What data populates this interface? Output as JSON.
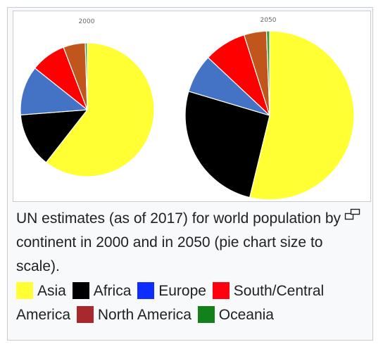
{
  "caption": "UN estimates (as of 2017) for world population by continent in 2000 and in 2050 (pie chart size to scale).",
  "enlarge_icon": "enlarge-icon",
  "legend": [
    {
      "label": "Asia",
      "color": "#ffff33"
    },
    {
      "label": "Africa",
      "color": "#000000"
    },
    {
      "label": "Europe",
      "color": "#0d2cff"
    },
    {
      "label": "South/Central",
      "color": "#ff0010"
    },
    {
      "label": "America",
      "color": null
    },
    {
      "label": "North America",
      "color": "#a8282e"
    },
    {
      "label": "Oceania",
      "color": "#14801a"
    }
  ],
  "chart_data": [
    {
      "type": "pie",
      "title": "2000",
      "labels": [
        "Asia",
        "Africa",
        "Europe",
        "South/Central America",
        "North America",
        "Oceania"
      ],
      "values": [
        60.5,
        13.2,
        11.9,
        8.5,
        5.3,
        0.5
      ],
      "colors": [
        "#ffff33",
        "#000000",
        "#4472c4",
        "#ff0000",
        "#c0561c",
        "#3f9b3f"
      ]
    },
    {
      "type": "pie",
      "title": "2050",
      "labels": [
        "Asia",
        "Africa",
        "Europe",
        "South/Central America",
        "North America",
        "Oceania"
      ],
      "values": [
        53.8,
        25.8,
        7.4,
        8.1,
        4.3,
        0.6
      ],
      "colors": [
        "#ffff33",
        "#000000",
        "#4472c4",
        "#ff0000",
        "#c0561c",
        "#3f9b3f"
      ]
    }
  ]
}
